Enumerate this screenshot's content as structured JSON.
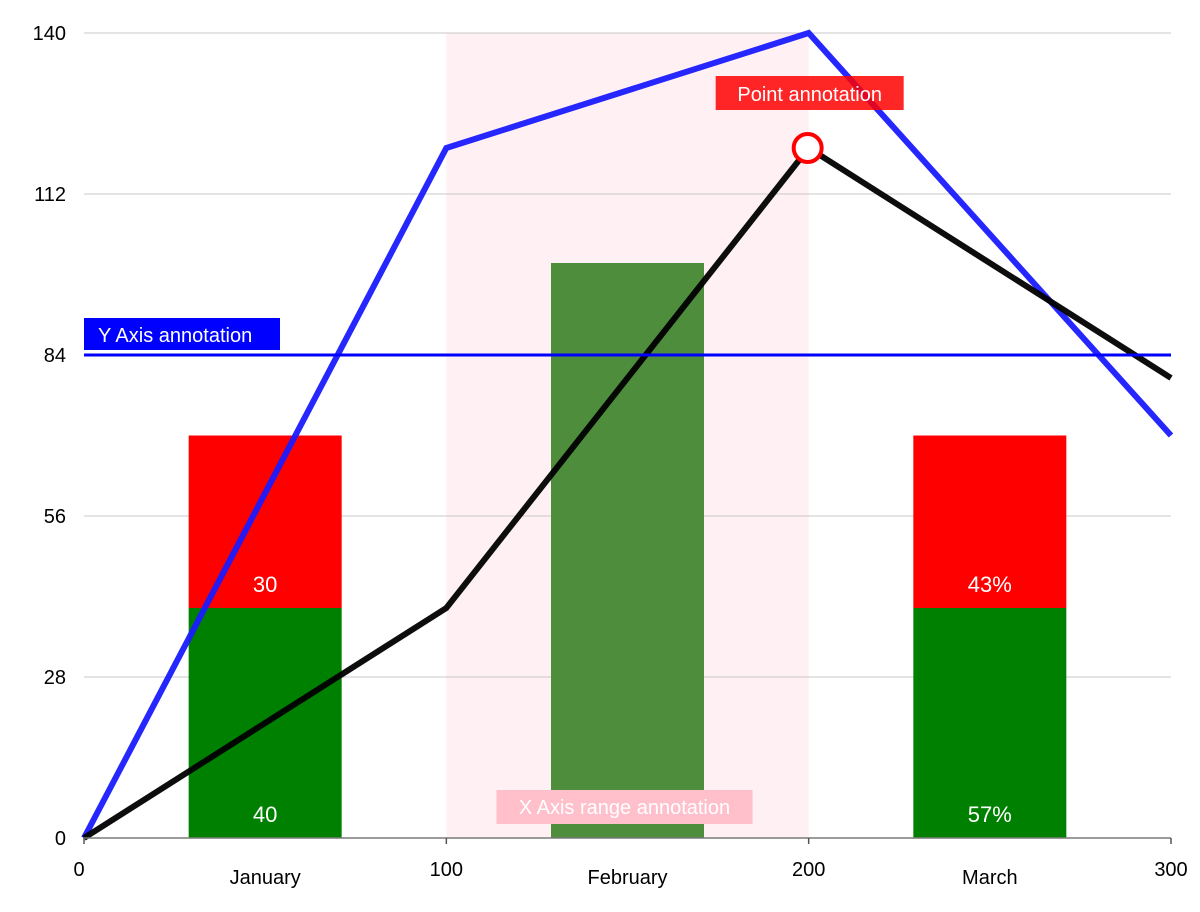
{
  "chart_data": {
    "type": "bar",
    "grid": true,
    "legend": "none",
    "title": "",
    "xlabel": "",
    "ylabel": "",
    "ylim": [
      0,
      140
    ],
    "yticks": [
      "0",
      "28",
      "56",
      "84",
      "112",
      "140"
    ],
    "x_numeric_range": [
      0,
      300
    ],
    "x_numeric_ticks": [
      "0",
      "100",
      "200",
      "300"
    ],
    "categories": [
      "January",
      "February",
      "March"
    ],
    "bar_series": [
      {
        "color": "#008000",
        "values": [
          40,
          null,
          40
        ],
        "labels": [
          "40",
          "",
          "57%"
        ]
      },
      {
        "color": "#ff0000",
        "values": [
          30,
          null,
          30
        ],
        "labels": [
          "30",
          "",
          "43%"
        ]
      },
      {
        "color": "#4e8d3c",
        "values": [
          null,
          100,
          null
        ],
        "labels": [
          "",
          "",
          ""
        ]
      }
    ],
    "line_series": [
      {
        "color": "#1a1aff",
        "points": [
          [
            0,
            0
          ],
          [
            100,
            120
          ],
          [
            200,
            140
          ],
          [
            300,
            70
          ]
        ]
      },
      {
        "color": "#000000",
        "points": [
          [
            0,
            0
          ],
          [
            100,
            40
          ],
          [
            200,
            120
          ],
          [
            300,
            80
          ]
        ]
      }
    ],
    "annotations": {
      "y_line": {
        "value": 84,
        "label": "Y Axis annotation",
        "color": "#0000ff"
      },
      "x_range": {
        "from": 100,
        "to": 200,
        "label": "X Axis range annotation",
        "fill": "#fff0f3",
        "label_bg": "#ffc0cb"
      },
      "point": {
        "x": 200,
        "y": 120,
        "label": "Point annotation",
        "color": "#ff0000"
      }
    }
  }
}
